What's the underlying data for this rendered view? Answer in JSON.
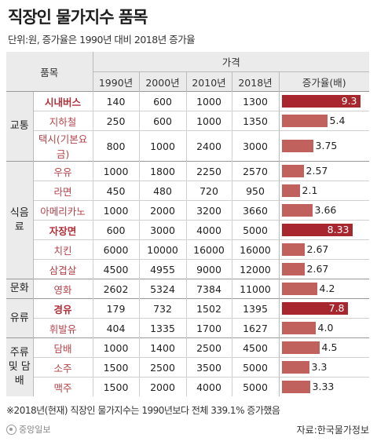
{
  "title": "직장인 물가지수 품목",
  "subtitle": "단위:원, 증가율은 1990년 대비 2018년 증가율",
  "header": {
    "item": "품목",
    "price": "가격",
    "years": [
      "1990년",
      "2000년",
      "2010년",
      "2018년"
    ],
    "rate": "증가율(배)"
  },
  "chart_data": {
    "type": "table",
    "columns": [
      "품목",
      "1990년",
      "2000년",
      "2010년",
      "2018년",
      "증가율(배)"
    ],
    "groups": [
      {
        "name": "교통",
        "items": [
          {
            "name": "시내버스",
            "highlight": true,
            "prices": [
              "140",
              "600",
              "1000",
              "1300"
            ],
            "rate": 9.3,
            "rate_label": "9.3"
          },
          {
            "name": "지하철",
            "highlight": false,
            "prices": [
              "250",
              "600",
              "1000",
              "1350"
            ],
            "rate": 5.4,
            "rate_label": "5.4"
          },
          {
            "name": "택시(기본요금)",
            "highlight": false,
            "prices": [
              "800",
              "1000",
              "2400",
              "3000"
            ],
            "rate": 3.75,
            "rate_label": "3.75"
          }
        ]
      },
      {
        "name": "식음료",
        "items": [
          {
            "name": "우유",
            "highlight": false,
            "prices": [
              "1000",
              "1800",
              "2250",
              "2570"
            ],
            "rate": 2.57,
            "rate_label": "2.57"
          },
          {
            "name": "라면",
            "highlight": false,
            "prices": [
              "450",
              "480",
              "720",
              "950"
            ],
            "rate": 2.1,
            "rate_label": "2.1"
          },
          {
            "name": "아메리카노",
            "highlight": false,
            "prices": [
              "1000",
              "2000",
              "3200",
              "3660"
            ],
            "rate": 3.66,
            "rate_label": "3.66"
          },
          {
            "name": "자장면",
            "highlight": true,
            "prices": [
              "600",
              "3000",
              "4000",
              "5000"
            ],
            "rate": 8.33,
            "rate_label": "8.33"
          },
          {
            "name": "치킨",
            "highlight": false,
            "prices": [
              "6000",
              "10000",
              "16000",
              "16000"
            ],
            "rate": 2.67,
            "rate_label": "2.67"
          },
          {
            "name": "삼겹살",
            "highlight": false,
            "prices": [
              "4500",
              "4955",
              "9000",
              "12000"
            ],
            "rate": 2.67,
            "rate_label": "2.67"
          }
        ]
      },
      {
        "name": "문화",
        "items": [
          {
            "name": "영화",
            "highlight": false,
            "prices": [
              "2602",
              "5324",
              "7384",
              "11000"
            ],
            "rate": 4.2,
            "rate_label": "4.2"
          }
        ]
      },
      {
        "name": "유류",
        "items": [
          {
            "name": "경유",
            "highlight": true,
            "prices": [
              "179",
              "732",
              "1502",
              "1395"
            ],
            "rate": 7.8,
            "rate_label": "7.8"
          },
          {
            "name": "휘발유",
            "highlight": false,
            "prices": [
              "404",
              "1335",
              "1700",
              "1627"
            ],
            "rate": 4.0,
            "rate_label": "4.0"
          }
        ]
      },
      {
        "name": "주류 및 담배",
        "items": [
          {
            "name": "담배",
            "highlight": false,
            "prices": [
              "1000",
              "1400",
              "2500",
              "4500"
            ],
            "rate": 4.5,
            "rate_label": "4.5"
          },
          {
            "name": "소주",
            "highlight": false,
            "prices": [
              "1500",
              "2500",
              "3500",
              "5000"
            ],
            "rate": 3.3,
            "rate_label": "3.3"
          },
          {
            "name": "맥주",
            "highlight": false,
            "prices": [
              "1500",
              "2000",
              "4000",
              "5000"
            ],
            "rate": 3.33,
            "rate_label": "3.33"
          }
        ]
      }
    ],
    "rate_max": 9.3
  },
  "footnote": "※2018년(현재) 직장인 물가지수는 1990년보다 전체 339.1% 증가했음",
  "logo": "중앙일보",
  "source": "자료:한국물가정보",
  "colors": {
    "bar": "#c0615e",
    "bar_highlight": "#a8262d",
    "item_text": "#b5434a",
    "header_bg": "#ebebeb"
  }
}
